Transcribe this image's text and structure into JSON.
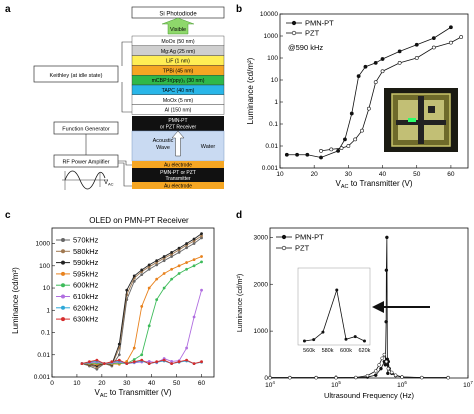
{
  "panels": {
    "a": "a",
    "b": "b",
    "c": "c",
    "d": "d"
  },
  "panel_a": {
    "photodiode": "Si Photodiode",
    "visible": "Visible",
    "layers": [
      {
        "label": "MoOx (50 nm)",
        "color": "#ffffff"
      },
      {
        "label": "Mg:Ag (25 nm)",
        "color": "#cfcfcf"
      },
      {
        "label": "LiF (1 nm)",
        "color": "#ffee55"
      },
      {
        "label": "TPBi (45 nm)",
        "color": "#f5a623"
      },
      {
        "label": "mCBP:Ir(ppy)₃ (30 nm)",
        "color": "#2fb84a"
      },
      {
        "label": "TAPC (40 nm)",
        "color": "#29b6e8"
      },
      {
        "label": "MoOx (5 nm)",
        "color": "#ffffff"
      },
      {
        "label": "Al (150 nm)",
        "color": "#ffffff"
      }
    ],
    "keithley": "Keithley (at idle state)",
    "receiver": "PMN-PT\nor PZT Receiver",
    "acoustic_wave": "Acoustic\nWave",
    "water": "Water",
    "au_top": "Au electrode",
    "transmitter": "PMN-PT or PZT\nTransmitter",
    "au_bottom": "Au electrode",
    "function_generator": "Function Generator",
    "rf_amp": "RF Power Amplifier",
    "vac": "V",
    "vac_sub": "AC",
    "colors": {
      "receiver": "#111111",
      "water": "#c9daf2",
      "electrode": "#f5a623"
    }
  },
  "chart_b": {
    "type": "line",
    "ylabel": "Luminance (cd/m²)",
    "xlabel_main": "V",
    "xlabel_sub": "AC",
    "xlabel_rest": " to Transmitter (V)",
    "annotation": "@590 kHz",
    "xlim": [
      10,
      65
    ],
    "ylim": [
      0.001,
      10000
    ],
    "x_ticks": [
      "10",
      "20",
      "30",
      "40",
      "50",
      "60"
    ],
    "y_ticks": [
      "0.001",
      "0.01",
      "0.1",
      "1",
      "10",
      "100",
      "1000",
      "10000"
    ],
    "series": [
      {
        "name": "PMN-PT",
        "marker": "filled",
        "x": [
          12,
          15,
          18,
          22,
          27,
          29,
          31,
          33,
          35,
          38,
          40,
          45,
          50,
          55,
          60
        ],
        "y": [
          0.004,
          0.004,
          0.004,
          0.003,
          0.006,
          0.02,
          0.3,
          15,
          40,
          60,
          90,
          200,
          400,
          800,
          2500
        ]
      },
      {
        "name": "PZT",
        "marker": "open",
        "x": [
          22,
          25,
          28,
          30,
          32,
          34,
          36,
          38,
          40,
          45,
          50,
          55,
          60,
          63
        ],
        "y": [
          0.006,
          0.007,
          0.008,
          0.01,
          0.02,
          0.05,
          0.5,
          8,
          25,
          60,
          100,
          300,
          500,
          900
        ]
      }
    ]
  },
  "chart_c": {
    "type": "line",
    "title": "OLED on PMN-PT Receiver",
    "ylabel": "Luminance (cd/m²)",
    "xlabel_main": "V",
    "xlabel_sub": "AC",
    "xlabel_rest": " to Transmitter (V)",
    "xlim": [
      0,
      65
    ],
    "ylim": [
      0.001,
      5000
    ],
    "x_ticks": [
      "0",
      "10",
      "20",
      "30",
      "40",
      "50",
      "60"
    ],
    "y_ticks": [
      "0.001",
      "0.01",
      "0.1",
      "1",
      "10",
      "100",
      "1000"
    ],
    "x": [
      12,
      15,
      18,
      21,
      24,
      27,
      30,
      33,
      36,
      39,
      42,
      45,
      48,
      51,
      54,
      57,
      60
    ],
    "series": [
      {
        "name": "570kHz",
        "color": "#666666",
        "y": [
          0.004,
          0.004,
          0.004,
          0.004,
          0.004,
          0.01,
          3,
          20,
          40,
          70,
          110,
          170,
          260,
          400,
          650,
          1000,
          1800
        ]
      },
      {
        "name": "580kHz",
        "color": "#a07850",
        "y": [
          0.004,
          0.004,
          0.004,
          0.004,
          0.004,
          0.02,
          5,
          28,
          55,
          90,
          140,
          220,
          330,
          520,
          850,
          1300,
          2200
        ]
      },
      {
        "name": "590kHz",
        "color": "#222222",
        "y": [
          0.004,
          0.004,
          0.004,
          0.004,
          0.004,
          0.03,
          8,
          35,
          65,
          110,
          170,
          260,
          400,
          620,
          1000,
          1600,
          2800
        ]
      },
      {
        "name": "595kHz",
        "color": "#e8821e",
        "y": [
          0.004,
          0.004,
          0.004,
          0.004,
          0.004,
          0.004,
          0.005,
          0.02,
          1.5,
          10,
          25,
          45,
          70,
          100,
          140,
          190,
          260
        ]
      },
      {
        "name": "600kHz",
        "color": "#3dbb5a",
        "y": [
          0.004,
          0.004,
          0.004,
          0.004,
          0.004,
          0.004,
          0.004,
          0.006,
          0.01,
          0.2,
          3,
          10,
          25,
          45,
          70,
          100,
          150
        ]
      },
      {
        "name": "610kHz",
        "color": "#b06ee0",
        "y": [
          0.004,
          0.004,
          0.004,
          0.004,
          0.004,
          0.004,
          0.004,
          0.004,
          0.004,
          0.005,
          0.004,
          0.006,
          0.005,
          0.005,
          0.02,
          0.5,
          8
        ]
      },
      {
        "name": "620kHz",
        "color": "#2fa8d8",
        "y": [
          0.004,
          0.004,
          0.004,
          0.004,
          0.004,
          0.004,
          0.004,
          0.004,
          0.004,
          0.004,
          0.004,
          0.004,
          0.004,
          0.004,
          0.004,
          0.004,
          0.004
        ]
      },
      {
        "name": "630kHz",
        "color": "#d62c2c",
        "y": [
          0.004,
          0.004,
          0.004,
          0.004,
          0.004,
          0.004,
          0.004,
          0.004,
          0.004,
          0.004,
          0.004,
          0.004,
          0.004,
          0.004,
          0.004,
          0.004,
          0.004
        ]
      }
    ]
  },
  "chart_d": {
    "type": "line",
    "ylabel": "Luminance (cd/m²)",
    "xlabel": "Ultrasound Frequency (Hz)",
    "xlim_log10": [
      4,
      7
    ],
    "ylim": [
      0,
      3200
    ],
    "x_ticks": [
      "10",
      "10",
      "10",
      "10"
    ],
    "x_tick_exps": [
      "4",
      "5",
      "6",
      "7"
    ],
    "y_ticks": [
      "0",
      "1000",
      "2000",
      "3000"
    ],
    "series": [
      {
        "name": "PMN-PT",
        "marker": "filled",
        "x": [
          10000,
          20000,
          50000,
          100000,
          200000,
          300000,
          400000,
          480000,
          540000,
          560000,
          575000,
          580000,
          590000,
          600000,
          610000,
          620000,
          640000,
          700000,
          800000,
          1000000,
          2000000,
          5000000
        ],
        "y": [
          10,
          10,
          10,
          10,
          10,
          20,
          60,
          200,
          350,
          280,
          1200,
          2300,
          3000,
          400,
          100,
          350,
          200,
          100,
          50,
          20,
          10,
          10
        ]
      },
      {
        "name": "PZT",
        "marker": "open",
        "x": [
          10000,
          20000,
          50000,
          100000,
          200000,
          300000,
          400000,
          450000,
          500000,
          540000,
          580000,
          620000,
          700000,
          800000,
          1000000,
          2000000,
          5000000
        ],
        "y": [
          5,
          5,
          5,
          5,
          10,
          50,
          150,
          280,
          420,
          500,
          350,
          200,
          120,
          60,
          20,
          8,
          5
        ]
      }
    ],
    "inset": {
      "x_ticks": [
        "560k",
        "580k",
        "600k",
        "620k"
      ],
      "x": [
        555000,
        565000,
        575000,
        590000,
        600000,
        610000,
        620000
      ],
      "y": [
        0,
        60,
        400,
        2300,
        80,
        200,
        0
      ]
    }
  }
}
